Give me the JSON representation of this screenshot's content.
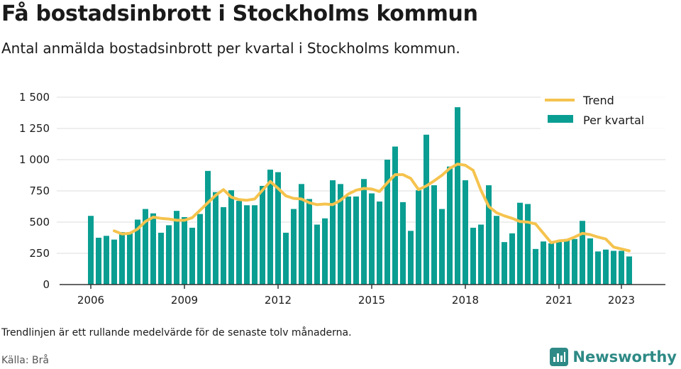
{
  "title": "Få bostadsinbrott i Stockholms kommun",
  "subtitle": "Antal anmälda bostadsinbrott per kvartal i Stockholms kommun.",
  "footnote": "Trendlinjen är ett rullande medelvärde för de senaste tolv månaderna.",
  "source": "Källa: Brå",
  "brand": "Newsworthy",
  "colors": {
    "bar": "#0a9e92",
    "trend": "#f5c34e",
    "grid": "#dddddd",
    "axis": "#333333",
    "brand": "#2e8a86"
  },
  "chart_data": {
    "type": "bar",
    "title": "",
    "xlabel": "",
    "ylabel": "",
    "ylim": [
      0,
      1500
    ],
    "yticks": [
      0,
      250,
      500,
      750,
      1000,
      1250,
      1500
    ],
    "ytick_labels": [
      "0",
      "250",
      "500",
      "750",
      "1 000",
      "1 250",
      "1 500"
    ],
    "xticks": [
      2006,
      2009,
      2012,
      2015,
      2018,
      2021,
      2023
    ],
    "grid": true,
    "legend_position": "top-right",
    "categories": [
      "2006 K1",
      "2006 K2",
      "2006 K3",
      "2006 K4",
      "2007 K1",
      "2007 K2",
      "2007 K3",
      "2007 K4",
      "2008 K1",
      "2008 K2",
      "2008 K3",
      "2008 K4",
      "2009 K1",
      "2009 K2",
      "2009 K3",
      "2009 K4",
      "2010 K1",
      "2010 K2",
      "2010 K3",
      "2010 K4",
      "2011 K1",
      "2011 K2",
      "2011 K3",
      "2011 K4",
      "2012 K1",
      "2012 K2",
      "2012 K3",
      "2012 K4",
      "2013 K1",
      "2013 K2",
      "2013 K3",
      "2013 K4",
      "2014 K1",
      "2014 K2",
      "2014 K3",
      "2014 K4",
      "2015 K1",
      "2015 K2",
      "2015 K3",
      "2015 K4",
      "2016 K1",
      "2016 K2",
      "2016 K3",
      "2016 K4",
      "2017 K1",
      "2017 K2",
      "2017 K3",
      "2017 K4",
      "2018 K1",
      "2018 K2",
      "2018 K3",
      "2018 K4",
      "2019 K1",
      "2019 K2",
      "2019 K3",
      "2019 K4",
      "2020 K1",
      "2020 K2",
      "2020 K3",
      "2020 K4",
      "2021 K1",
      "2021 K2",
      "2021 K3",
      "2021 K4",
      "2022 K1",
      "2022 K2",
      "2022 K3",
      "2022 K4",
      "2023 K1",
      "2023 K2"
    ],
    "series": [
      {
        "name": "Per kvartal",
        "type": "bar",
        "values": [
          550,
          375,
          390,
          360,
          420,
          420,
          520,
          605,
          570,
          415,
          475,
          590,
          540,
          455,
          565,
          910,
          740,
          620,
          755,
          670,
          635,
          635,
          790,
          920,
          900,
          415,
          605,
          805,
          685,
          480,
          530,
          835,
          805,
          705,
          705,
          845,
          730,
          665,
          1000,
          1105,
          660,
          430,
          755,
          1200,
          795,
          605,
          945,
          1420,
          835,
          455,
          480,
          795,
          550,
          340,
          410,
          655,
          645,
          285,
          345,
          330,
          350,
          365,
          365,
          510,
          370,
          265,
          280,
          270,
          270,
          225
        ]
      },
      {
        "name": "Trend",
        "type": "line",
        "values": [
          null,
          null,
          null,
          430,
          405,
          410,
          445,
          505,
          540,
          530,
          525,
          515,
          515,
          535,
          595,
          655,
          715,
          760,
          700,
          680,
          675,
          685,
          755,
          825,
          770,
          710,
          690,
          685,
          655,
          640,
          645,
          640,
          675,
          725,
          755,
          770,
          765,
          745,
          815,
          880,
          880,
          850,
          760,
          790,
          830,
          875,
          930,
          965,
          955,
          915,
          755,
          625,
          575,
          550,
          530,
          505,
          500,
          485,
          410,
          335,
          350,
          355,
          380,
          410,
          400,
          380,
          365,
          300,
          285,
          270
        ]
      }
    ]
  },
  "legend": [
    {
      "label": "Trend",
      "type": "line"
    },
    {
      "label": "Per kvartal",
      "type": "bar"
    }
  ]
}
